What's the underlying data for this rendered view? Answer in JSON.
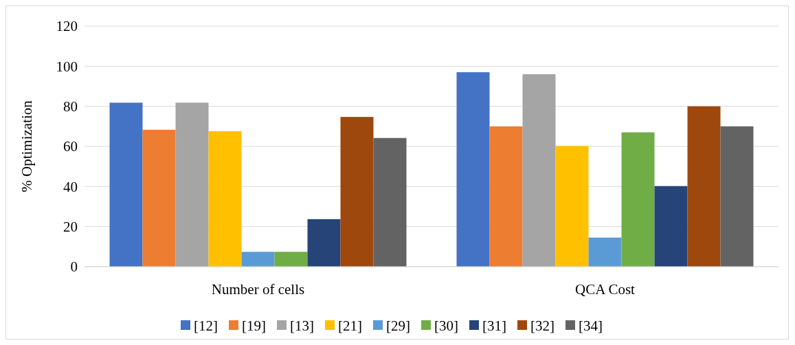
{
  "chart_data": {
    "type": "bar",
    "ylabel": "% Optimization",
    "categories": [
      "Number of cells",
      "QCA Cost"
    ],
    "series": [
      {
        "name": "[12]",
        "color": "#4472c4",
        "values": [
          81.8,
          97
        ]
      },
      {
        "name": "[19]",
        "color": "#ed7d31",
        "values": [
          68.3,
          70
        ]
      },
      {
        "name": "[13]",
        "color": "#a5a5a5",
        "values": [
          81.8,
          96
        ]
      },
      {
        "name": "[21]",
        "color": "#ffc000",
        "values": [
          67.6,
          60.2
        ]
      },
      {
        "name": "[29]",
        "color": "#5b9bd5",
        "values": [
          7.4,
          14.5
        ]
      },
      {
        "name": "[30]",
        "color": "#70ad47",
        "values": [
          7.4,
          67
        ]
      },
      {
        "name": "[31]",
        "color": "#264478",
        "values": [
          23.7,
          40.2
        ]
      },
      {
        "name": "[32]",
        "color": "#9e480e",
        "values": [
          74.7,
          80
        ]
      },
      {
        "name": "[34]",
        "color": "#636363",
        "values": [
          64.2,
          70
        ]
      }
    ],
    "ylim": [
      0,
      120
    ],
    "yticks": [
      0,
      20,
      40,
      60,
      80,
      100,
      120
    ],
    "grid": "y",
    "legend": "bottom"
  }
}
